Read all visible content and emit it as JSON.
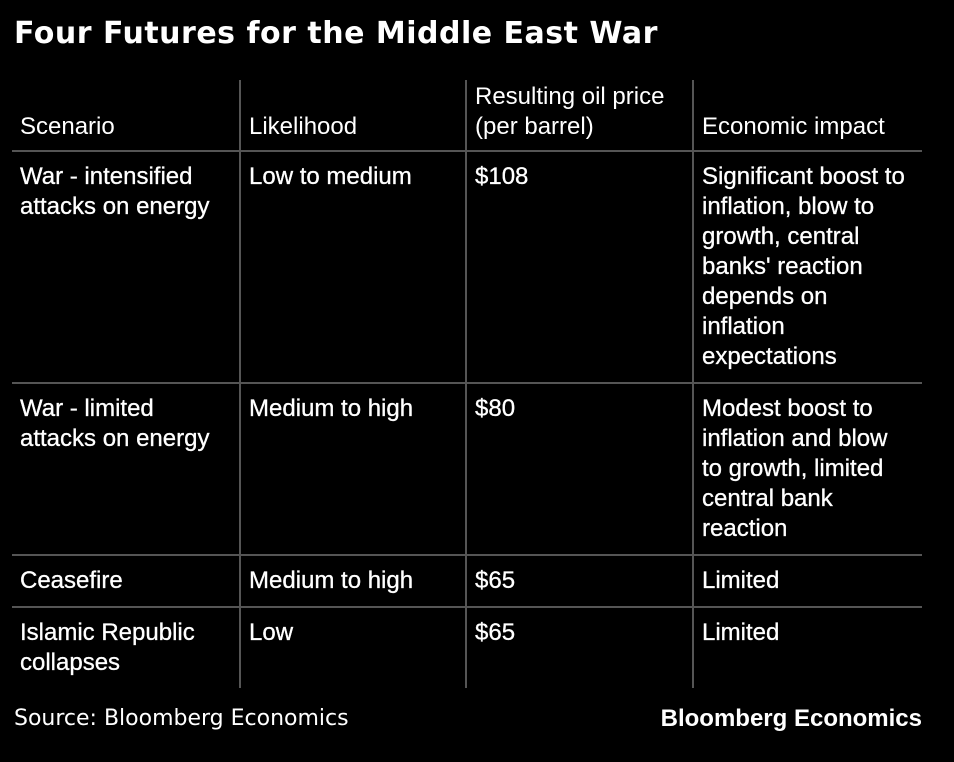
{
  "title": "Four Futures for the Middle East War",
  "table": {
    "headers": [
      "Scenario",
      "Likelihood",
      "Resulting oil price (per barrel)",
      "Economic impact"
    ],
    "rows": [
      [
        "War - intensified attacks on energy",
        "Low to medium",
        "$108",
        "Significant boost to inflation, blow to growth, central banks' reaction depends on inflation expectations"
      ],
      [
        "War - limited attacks on energy",
        "Medium to high",
        "$80",
        "Modest boost to inflation and blow to growth, limited central bank reaction"
      ],
      [
        "Ceasefire",
        "Medium to high",
        "$65",
        "Limited"
      ],
      [
        "Islamic Republic collapses",
        "Low",
        "$65",
        "Limited"
      ]
    ]
  },
  "footer": {
    "source": "Source: Bloomberg Economics",
    "brand": "Bloomberg Economics"
  }
}
